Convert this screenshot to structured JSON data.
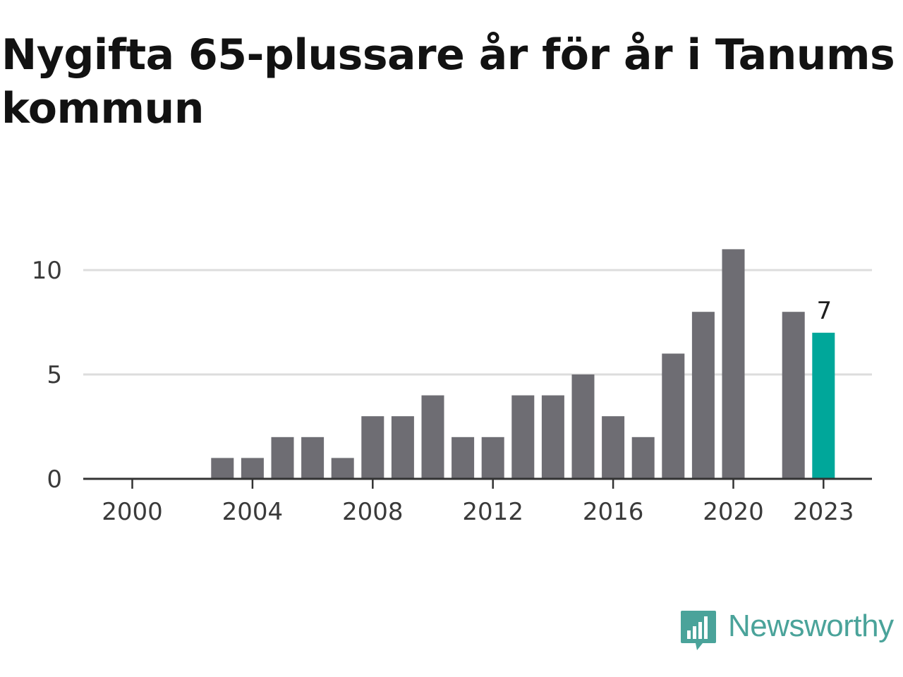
{
  "title": "Nygifta 65-plussare år för år i Tanums kommun",
  "brand": {
    "name": "Newsworthy",
    "icon": "newsworthy-logo-icon",
    "color": "#4aa39a"
  },
  "colors": {
    "bar": "#6e6d73",
    "highlight": "#00a79a",
    "grid": "#dddddd",
    "axis": "#333333"
  },
  "chart_data": {
    "type": "bar",
    "x": [
      2000,
      2001,
      2002,
      2003,
      2004,
      2005,
      2006,
      2007,
      2008,
      2009,
      2010,
      2011,
      2012,
      2013,
      2014,
      2015,
      2016,
      2017,
      2018,
      2019,
      2020,
      2021,
      2022,
      2023
    ],
    "values": [
      0,
      0,
      0,
      1,
      1,
      2,
      2,
      1,
      3,
      3,
      4,
      2,
      2,
      4,
      4,
      5,
      3,
      2,
      6,
      8,
      11,
      null,
      8,
      7
    ],
    "highlight_index": 23,
    "highlight_label": "7",
    "title": "Nygifta 65-plussare år för år i Tanums kommun",
    "xlabel": "",
    "ylabel": "",
    "ylim": [
      0,
      11
    ],
    "y_ticks": [
      "0",
      "5",
      "10"
    ],
    "y_tick_values": [
      0,
      5,
      10
    ],
    "x_ticks": [
      "2000",
      "2004",
      "2008",
      "2012",
      "2016",
      "2020",
      "2023"
    ],
    "x_tick_values": [
      2000,
      2004,
      2008,
      2012,
      2016,
      2020,
      2023
    ],
    "grid": true,
    "legend": "none"
  }
}
